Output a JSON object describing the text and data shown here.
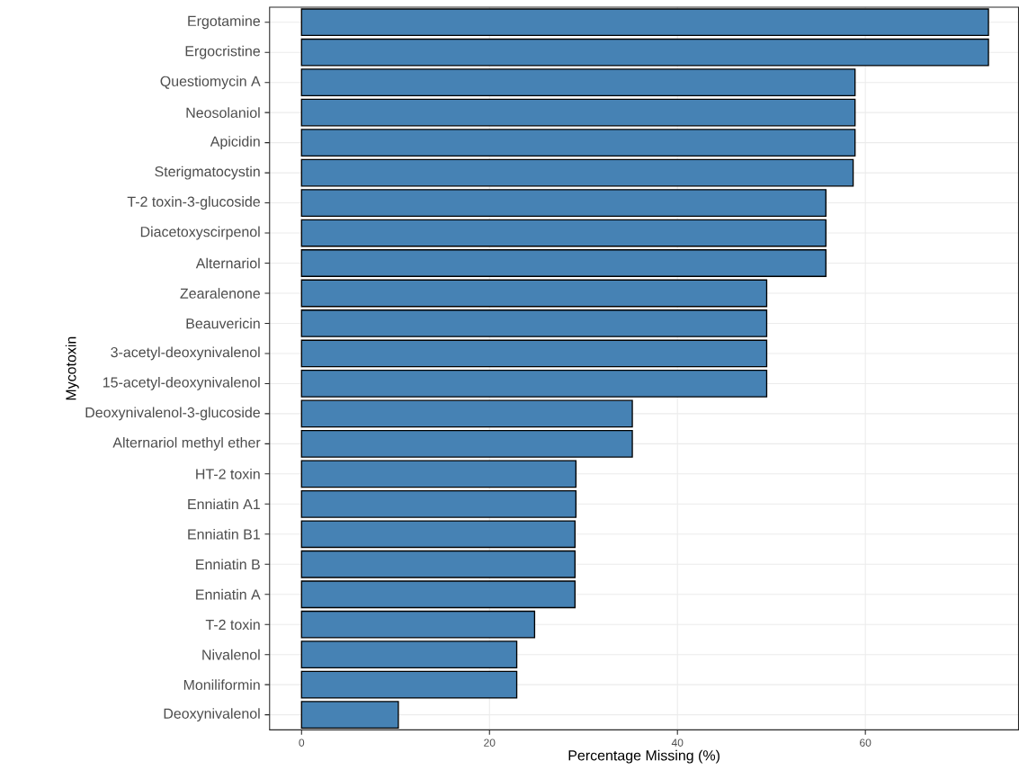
{
  "chart_data": {
    "type": "bar",
    "orientation": "horizontal",
    "xlabel": "Percentage Missing (%)",
    "ylabel": "Mycotoxin",
    "categories": [
      "Ergotamine",
      "Ergocristine",
      "Questiomycin A",
      "Neosolaniol",
      "Apicidin",
      "Sterigmatocystin",
      "T-2 toxin-3-glucoside",
      "Diacetoxyscirpenol",
      "Alternariol",
      "Zearalenone",
      "Beauvericin",
      "3-acetyl-deoxynivalenol",
      "15-acetyl-deoxynivalenol",
      "Deoxynivalenol-3-glucoside",
      "Alternariol methyl ether",
      "HT-2 toxin",
      "Enniatin A1",
      "Enniatin B1",
      "Enniatin B",
      "Enniatin A",
      "T-2 toxin",
      "Nivalenol",
      "Moniliformin",
      "Deoxynivalenol"
    ],
    "values": [
      73.1,
      73.1,
      58.9,
      58.9,
      58.9,
      58.7,
      55.8,
      55.8,
      55.8,
      49.5,
      49.5,
      49.5,
      49.5,
      35.2,
      35.2,
      29.2,
      29.2,
      29.1,
      29.1,
      29.1,
      24.8,
      22.9,
      22.9,
      10.3
    ],
    "color": "#4682b4",
    "xlim": [
      -3.4,
      76.3
    ],
    "xticks": [
      0,
      20,
      40,
      60
    ],
    "grid": true
  }
}
